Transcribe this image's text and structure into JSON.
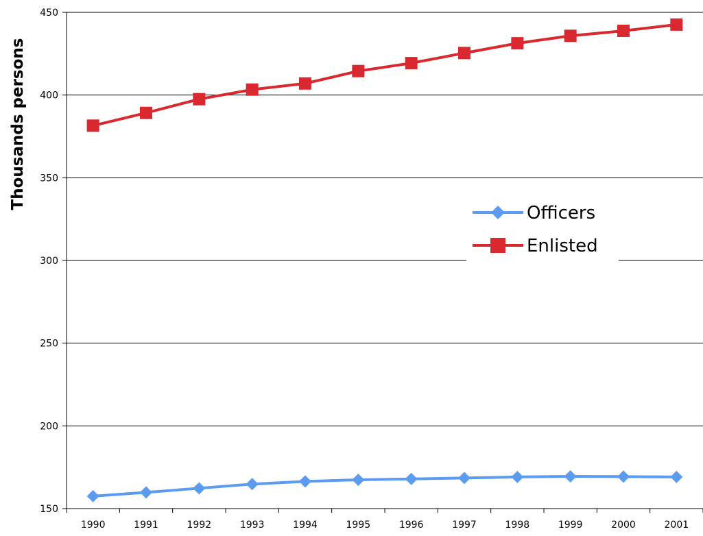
{
  "chart_data": {
    "type": "line",
    "title": "",
    "xlabel": "",
    "ylabel": "Thousands persons",
    "ylim": [
      150,
      450
    ],
    "yticks": [
      150,
      200,
      250,
      300,
      350,
      400,
      450
    ],
    "categories": [
      "1990",
      "1991",
      "1992",
      "1993",
      "1994",
      "1995",
      "1996",
      "1997",
      "1998",
      "1999",
      "2000",
      "2001"
    ],
    "grid": true,
    "legend_position": "right",
    "series": [
      {
        "name": "Officers",
        "color": "#5B9BF0",
        "marker": "diamond",
        "values": [
          157.5,
          159.8,
          162.3,
          164.8,
          166.4,
          167.4,
          167.9,
          168.5,
          169.1,
          169.5,
          169.3,
          169.1
        ]
      },
      {
        "name": "Enlisted",
        "color": "#D9282F",
        "marker": "square",
        "values": [
          381.5,
          389.2,
          397.5,
          403.3,
          407.0,
          414.5,
          419.3,
          425.4,
          431.3,
          435.8,
          438.8,
          442.6
        ]
      }
    ]
  }
}
